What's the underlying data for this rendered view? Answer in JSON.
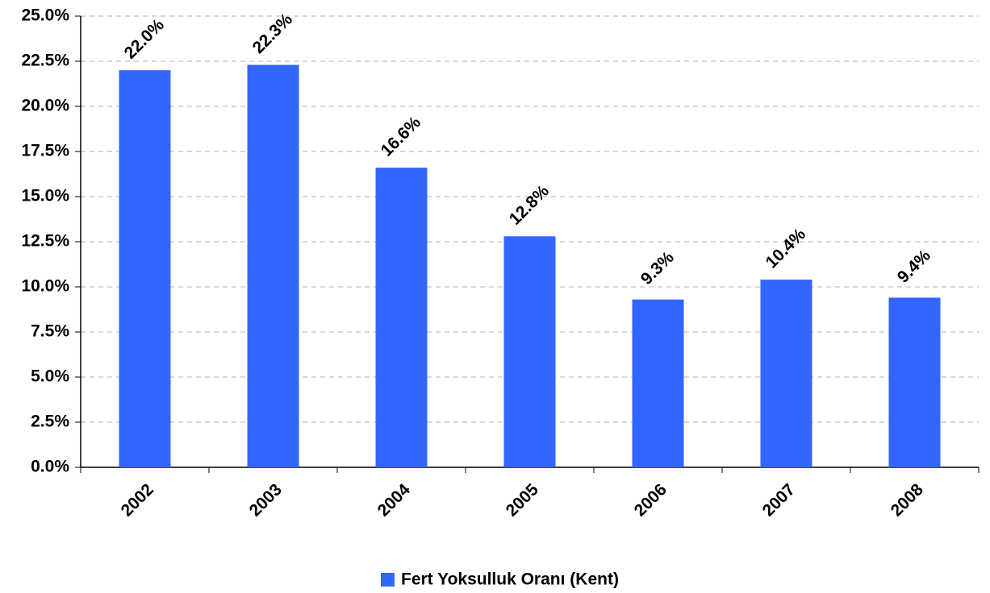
{
  "chart_data": {
    "type": "bar",
    "categories": [
      "2002",
      "2003",
      "2004",
      "2005",
      "2006",
      "2007",
      "2008"
    ],
    "series": [
      {
        "name": "Fert Yoksulluk Oranı (Kent)",
        "color": "#3366ff",
        "values": [
          22.0,
          22.3,
          16.6,
          12.8,
          9.3,
          10.4,
          9.4
        ],
        "value_labels": [
          "22.0%",
          "22.3%",
          "16.6%",
          "12.8%",
          "9.3%",
          "10.4%",
          "9.4%"
        ]
      }
    ],
    "ylim": [
      0,
      25
    ],
    "yticks": [
      {
        "value": 0,
        "label": "0.0%"
      },
      {
        "value": 2.5,
        "label": "2.5%"
      },
      {
        "value": 5,
        "label": "5.0%"
      },
      {
        "value": 7.5,
        "label": "7.5%"
      },
      {
        "value": 10,
        "label": "10.0%"
      },
      {
        "value": 12.5,
        "label": "12.5%"
      },
      {
        "value": 15,
        "label": "15.0%"
      },
      {
        "value": 17.5,
        "label": "17.5%"
      },
      {
        "value": 20,
        "label": "20.0%"
      },
      {
        "value": 22.5,
        "label": "22.5%"
      },
      {
        "value": 25,
        "label": "25.0%"
      }
    ],
    "grid": true,
    "legend": "bottom"
  }
}
